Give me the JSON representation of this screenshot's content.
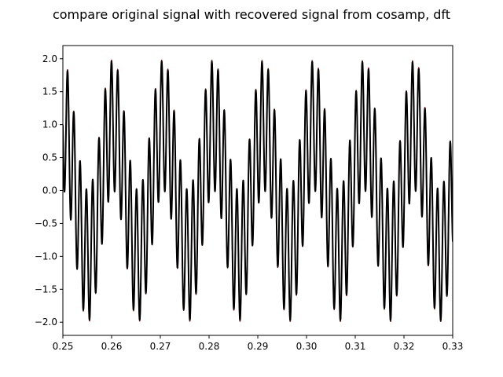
{
  "chart_data": {
    "type": "line",
    "title": "compare original signal with recovered signal from cosamp, dft",
    "xlabel": "",
    "ylabel": "",
    "xlim": [
      0.25,
      0.33
    ],
    "ylim": [
      -2.2,
      2.2
    ],
    "xticks": [
      0.25,
      0.26,
      0.27,
      0.28,
      0.29,
      0.3,
      0.31,
      0.32,
      0.33
    ],
    "xtick_labels": [
      "0.25",
      "0.26",
      "0.27",
      "0.28",
      "0.29",
      "0.30",
      "0.31",
      "0.32",
      "0.33"
    ],
    "yticks": [
      -2.0,
      -1.5,
      -1.0,
      -0.5,
      0.0,
      0.5,
      1.0,
      1.5,
      2.0
    ],
    "ytick_labels": [
      "−2.0",
      "−1.5",
      "−1.0",
      "−0.5",
      "0.0",
      "0.5",
      "1.0",
      "1.5",
      "2.0"
    ],
    "grid": false,
    "legend": "none",
    "signal_model": "y = sin(2*pi*97*t) + cos(2*pi*777*t)",
    "series": [
      {
        "color": "#8b1a1a",
        "linewidth": 1.5,
        "components": [
          {
            "fn": "sin",
            "freq": 97,
            "amp": 1.0
          },
          {
            "fn": "cos",
            "freq": 777,
            "amp": 1.0
          }
        ]
      },
      {
        "color": "#000000",
        "linewidth": 2.0,
        "components": [
          {
            "fn": "sin",
            "freq": 97,
            "amp": 0.99
          },
          {
            "fn": "cos",
            "freq": 777,
            "amp": 0.99
          }
        ]
      }
    ]
  }
}
